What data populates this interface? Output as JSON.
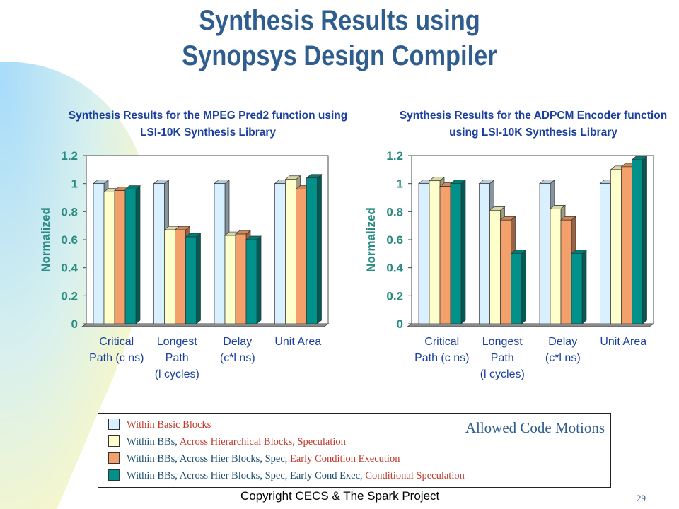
{
  "slide": {
    "title_line1": "Synthesis Results using",
    "title_line2": "Synopsys Design Compiler",
    "footer": "Copyright CECS & The Spark Project",
    "page_number": "29"
  },
  "colors": {
    "title": "#2f5e8e",
    "chart_title": "#1a3f9e",
    "axis_text": "#2a8a82",
    "series": [
      "#d8f0ff",
      "#ffffcc",
      "#f4a06a",
      "#00928a"
    ]
  },
  "legend": {
    "title": "Allowed Code Motions",
    "items": [
      {
        "parts": [
          {
            "text": "Within Basic Blocks",
            "tone": "red"
          }
        ]
      },
      {
        "parts": [
          {
            "text": "Within BBs, ",
            "tone": "blk"
          },
          {
            "text": "Across Hierarchical Blocks, Speculation",
            "tone": "red"
          }
        ]
      },
      {
        "parts": [
          {
            "text": "Within BBs, Across Hier Blocks, Spec, ",
            "tone": "blk"
          },
          {
            "text": "Early Condition Execution",
            "tone": "red"
          }
        ]
      },
      {
        "parts": [
          {
            "text": "Within BBs, Across Hier Blocks, Spec, Early Cond Exec, ",
            "tone": "blk"
          },
          {
            "text": "Conditional Speculation",
            "tone": "red"
          }
        ]
      }
    ]
  },
  "chart_data": [
    {
      "type": "bar",
      "title": [
        "Synthesis Results for the MPEG Pred2 function using",
        "LSI-10K Synthesis Library"
      ],
      "ylabel": "Normalized",
      "ylim": [
        0,
        1.2
      ],
      "yticks": [
        "0",
        "0.2",
        "0.4",
        "0.6",
        "0.8",
        "1",
        "1.2"
      ],
      "categories": [
        [
          "Critical",
          "Path (c ns)"
        ],
        [
          "Longest",
          "Path",
          "(l cycles)"
        ],
        [
          "Delay",
          "(c*l ns)"
        ],
        [
          "Unit Area"
        ]
      ],
      "series": [
        {
          "values": [
            1.0,
            1.0,
            1.0,
            1.0
          ]
        },
        {
          "values": [
            0.94,
            0.67,
            0.63,
            1.03
          ]
        },
        {
          "values": [
            0.95,
            0.67,
            0.64,
            0.96
          ]
        },
        {
          "values": [
            0.96,
            0.62,
            0.6,
            1.04
          ]
        }
      ],
      "grid": false,
      "legend": "bottom"
    },
    {
      "type": "bar",
      "title": [
        "Synthesis Results for the ADPCM Encoder function",
        "using LSI-10K Synthesis Library"
      ],
      "ylabel": "Normalized",
      "ylim": [
        0,
        1.2
      ],
      "yticks": [
        "0",
        "0.2",
        "0.4",
        "0.6",
        "0.8",
        "1",
        "1.2"
      ],
      "categories": [
        [
          "Critical",
          "Path (c ns)"
        ],
        [
          "Longest",
          "Path",
          "(l cycles)"
        ],
        [
          "Delay",
          "(c*l ns)"
        ],
        [
          "Unit Area"
        ]
      ],
      "series": [
        {
          "values": [
            1.0,
            1.0,
            1.0,
            1.0
          ]
        },
        {
          "values": [
            1.02,
            0.81,
            0.82,
            1.1
          ]
        },
        {
          "values": [
            0.98,
            0.74,
            0.74,
            1.12
          ]
        },
        {
          "values": [
            1.0,
            0.5,
            0.5,
            1.17
          ]
        }
      ],
      "grid": false,
      "legend": "bottom"
    }
  ]
}
